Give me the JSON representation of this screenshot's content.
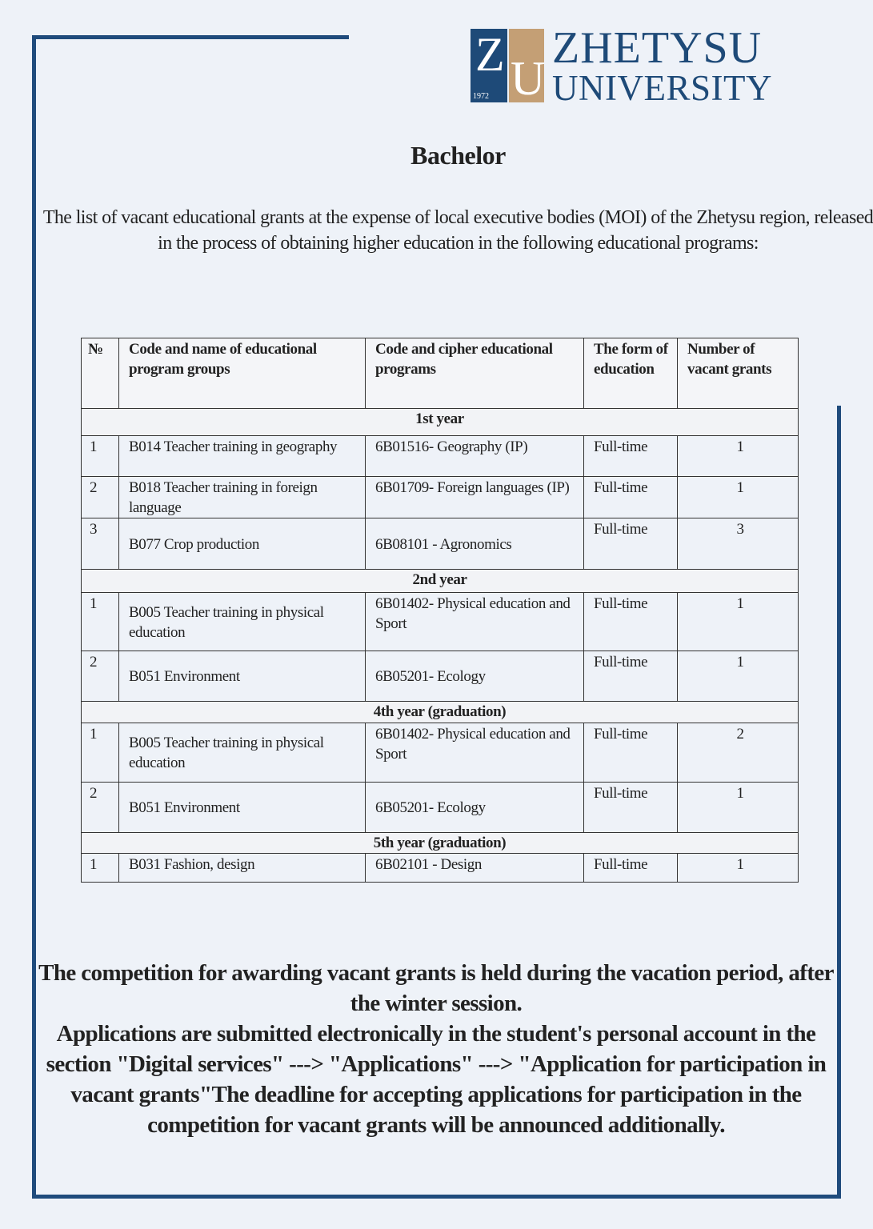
{
  "logo": {
    "initials_1": "Z",
    "initials_2": "U",
    "year": "1972",
    "name_line1": "ZHETYSU",
    "name_line2": "UNIVERSITY",
    "colors": {
      "blue": "#1e4a78",
      "tan": "#c49f75"
    }
  },
  "title": "Bachelor",
  "intro": "The list of vacant educational grants at the expense of local executive bodies (MOI) of the Zhetysu region, released in the process of obtaining higher education in the following educational programs:",
  "table": {
    "headers": [
      "№",
      "Code and name of educational program groups",
      "Code and cipher educational programs",
      "The form of education",
      "Number of vacant grants"
    ],
    "sections": [
      {
        "label": "1st year",
        "rows": [
          {
            "no": "1",
            "group": "B014 Teacher training in geography",
            "program": "6B01516- Geography (IP)",
            "form": "Full-time",
            "grants": "1"
          },
          {
            "no": "2",
            "group": "B018 Teacher training in foreign language",
            "program": "6B01709- Foreign languages (IP)",
            "form": "Full-time",
            "grants": "1"
          },
          {
            "no": "3",
            "group": "B077 Crop production",
            "program": "6B08101 - Agronomics",
            "form": "Full-time",
            "grants": "3"
          }
        ]
      },
      {
        "label": "2nd year",
        "rows": [
          {
            "no": "1",
            "group": "B005 Teacher training in physical education",
            "program": "6B01402- Physical education and Sport",
            "form": "Full-time",
            "grants": "1"
          },
          {
            "no": "2",
            "group": "B051 Environment",
            "program": "6B05201- Ecology",
            "form": "Full-time",
            "grants": "1"
          }
        ]
      },
      {
        "label": "4th year (graduation)",
        "rows": [
          {
            "no": "1",
            "group": "B005 Teacher training in physical education",
            "program": "6B01402- Physical education and Sport",
            "form": "Full-time",
            "grants": "2"
          },
          {
            "no": "2",
            "group": "B051 Environment",
            "program": "6B05201- Ecology",
            "form": "Full-time",
            "grants": "1"
          }
        ]
      },
      {
        "label": "5th year (graduation)",
        "rows": [
          {
            "no": "1",
            "group": "B031 Fashion, design",
            "program": "6B02101 - Design",
            "form": "Full-time",
            "grants": "1"
          }
        ]
      }
    ]
  },
  "footer": {
    "line1": "The competition for awarding vacant grants is held during the vacation period, after the winter session.",
    "line2": "Applications are submitted electronically in the student's personal account in the section \"Digital services\" ---> \"Applications\" ---> \"Application for participation in vacant grants\"The deadline for accepting applications for participation in the competition for vacant grants will be announced additionally."
  }
}
